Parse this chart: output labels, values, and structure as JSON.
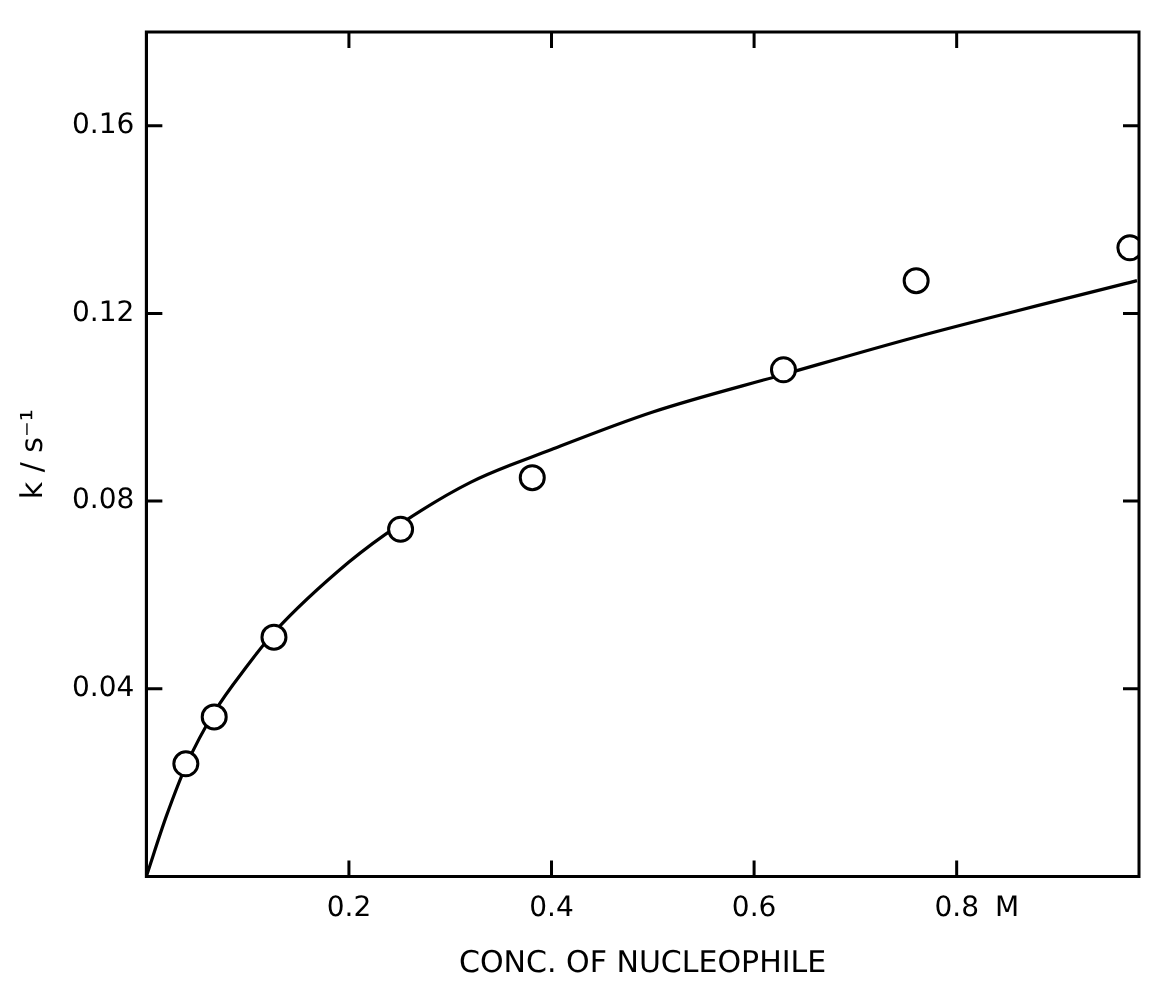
{
  "chart_data": {
    "type": "scatter",
    "xlabel": "CONC. OF NUCLEOPHILE",
    "ylabel": "k / s⁻¹",
    "xlim": [
      0,
      0.98
    ],
    "ylim": [
      0,
      0.18
    ],
    "xticks": [
      0.2,
      0.4,
      0.6,
      0.8
    ],
    "annotations": [
      "M"
    ],
    "yticks": [
      0.04,
      0.08,
      0.12,
      0.16
    ],
    "grid": false,
    "legend": false,
    "series": [
      {
        "type": "scatter",
        "marker": "circle",
        "color": "#000000",
        "x": [
          0.039,
          0.067,
          0.126,
          0.251,
          0.381,
          0.629,
          0.76,
          0.971
        ],
        "values": [
          0.024,
          0.034,
          0.051,
          0.074,
          0.085,
          0.108,
          0.127,
          0.134
        ]
      },
      {
        "type": "line",
        "marker": "none",
        "line_style": "solid",
        "color": "#000000",
        "x": [
          0,
          0.02,
          0.04,
          0.067,
          0.1,
          0.126,
          0.2,
          0.25,
          0.32,
          0.4,
          0.5,
          0.629,
          0.76,
          0.978
        ],
        "values": [
          0,
          0.013,
          0.024,
          0.035,
          0.045,
          0.052,
          0.067,
          0.075,
          0.084,
          0.091,
          0.099,
          0.107,
          0.115,
          0.127
        ]
      }
    ]
  }
}
